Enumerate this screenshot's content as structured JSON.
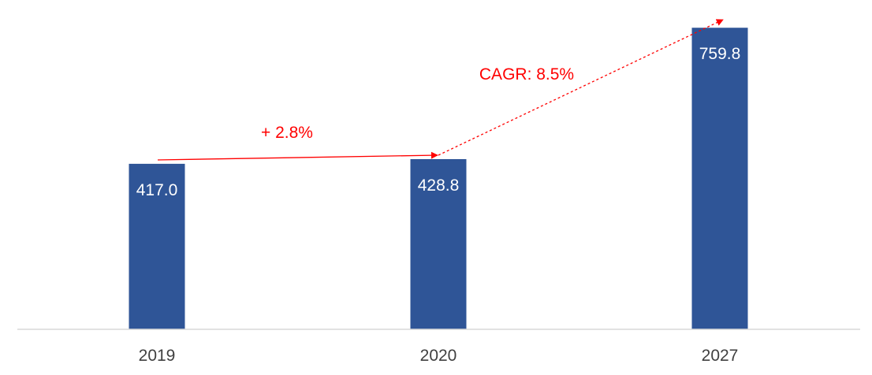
{
  "chart_data": {
    "type": "bar",
    "categories": [
      "2019",
      "2020",
      "2027"
    ],
    "values": [
      417.0,
      428.8,
      759.8
    ],
    "value_labels": [
      "417.0",
      "428.8",
      "759.8"
    ],
    "title": "",
    "xlabel": "",
    "ylabel": "",
    "ylim": [
      0,
      790
    ],
    "grid": false,
    "legend": "none",
    "bar_color": "#2F5597",
    "axis_color": "#D9D9D9",
    "annotations": [
      {
        "text": "+ 2.8%",
        "from_category": "2019",
        "to_category": "2020",
        "line_style": "solid",
        "color": "#FF0000"
      },
      {
        "text": "CAGR: 8.5%",
        "from_category": "2020",
        "to_category": "2027",
        "line_style": "dashed",
        "color": "#FF0000"
      }
    ]
  }
}
